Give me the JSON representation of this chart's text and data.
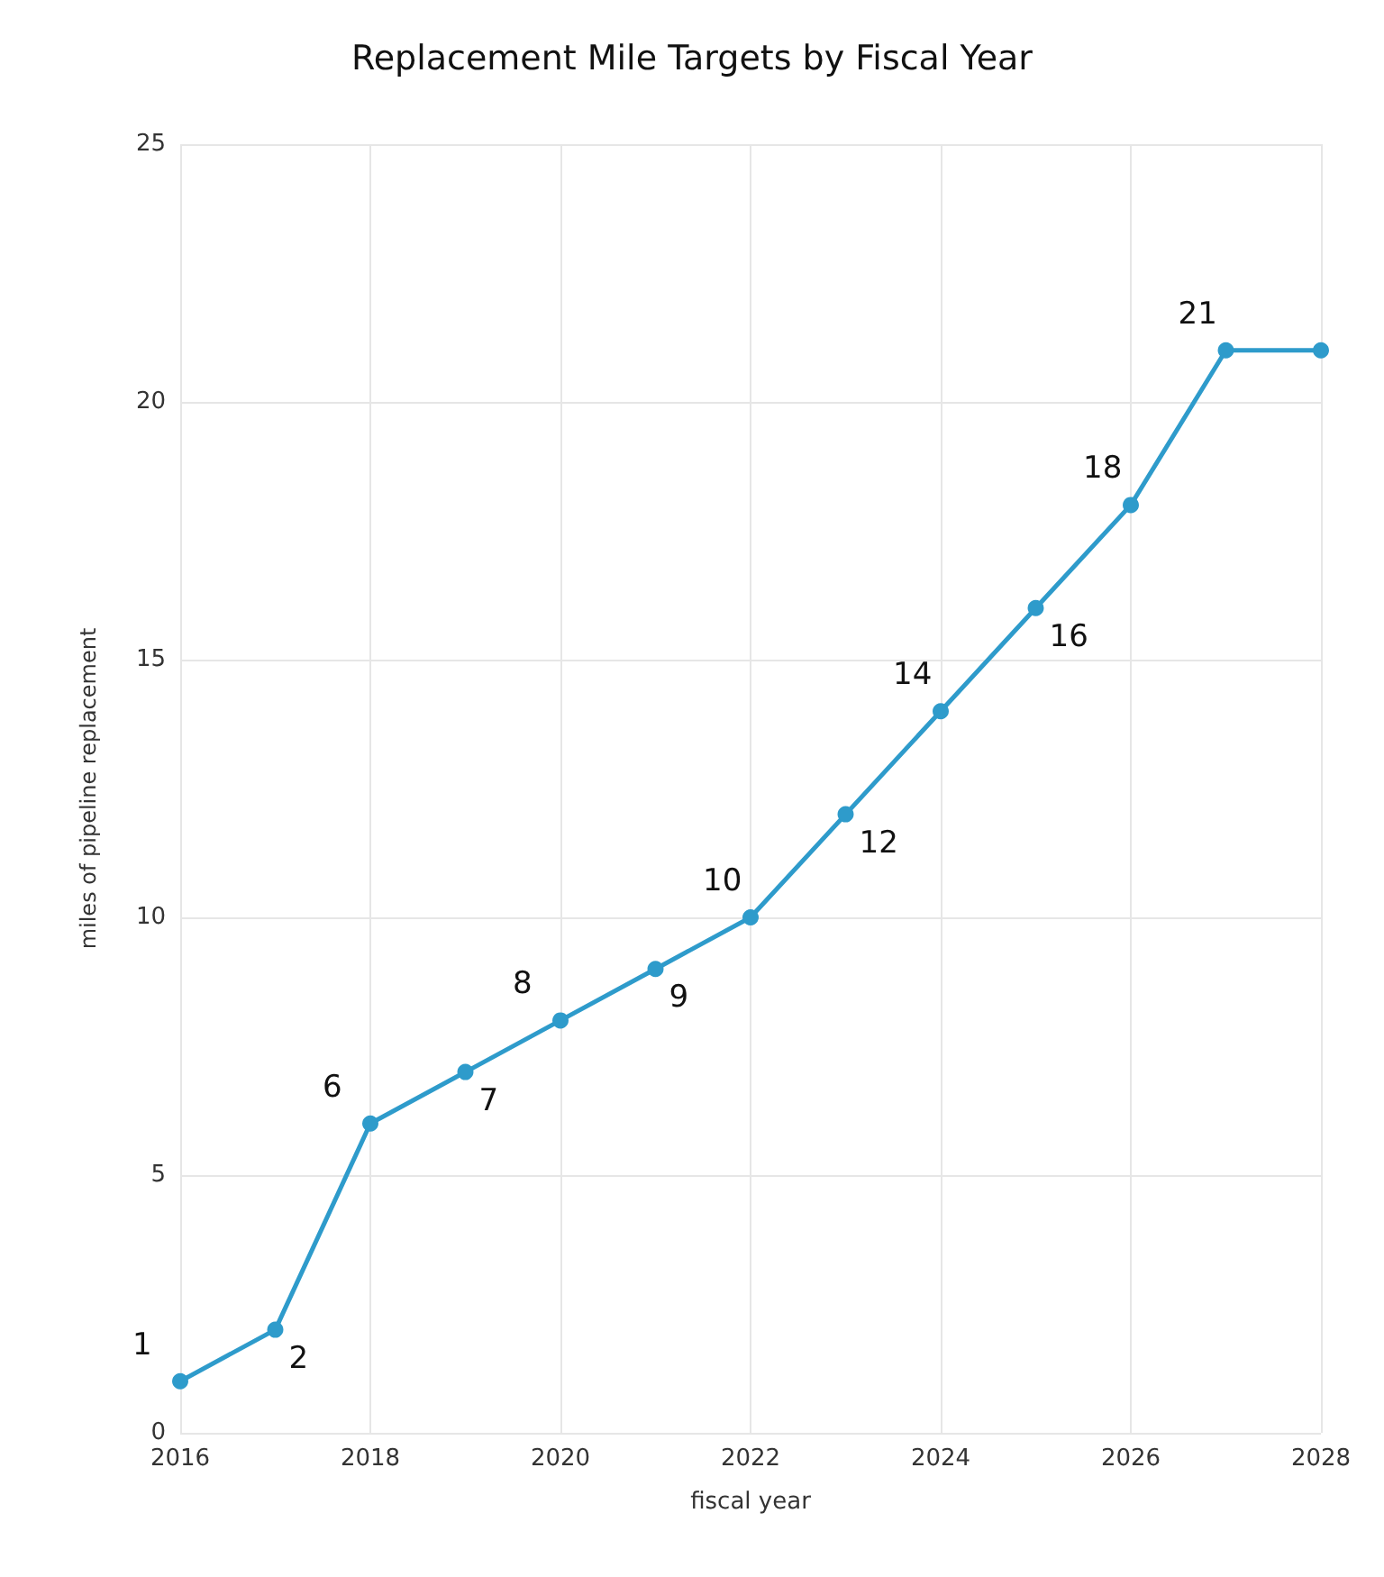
{
  "chart_data": {
    "type": "line",
    "title": "Replacement Mile Targets by Fiscal Year",
    "xlabel": "fiscal year",
    "ylabel": "miles of pipeline replacement",
    "x": [
      2016,
      2017,
      2018,
      2019,
      2020,
      2021,
      2022,
      2023,
      2024,
      2025,
      2026,
      2027,
      2028
    ],
    "series": [
      {
        "color": "#2e9bcb",
        "values": [
          1,
          2,
          6,
          7,
          8,
          9,
          10,
          12,
          14,
          16,
          18,
          21,
          21
        ],
        "value_labels": [
          "1",
          "2",
          "6",
          "7",
          "8",
          "9",
          "10",
          "12",
          "14",
          "16",
          "18",
          "21",
          null
        ]
      }
    ],
    "xlim": [
      2016,
      2028
    ],
    "xticks": [
      2016,
      2018,
      2020,
      2022,
      2024,
      2026,
      2028
    ],
    "ylim": [
      0,
      25
    ],
    "yticks": [
      0,
      5,
      10,
      15,
      20,
      25
    ],
    "grid": true,
    "marker": "circle",
    "line_style": "solid"
  }
}
